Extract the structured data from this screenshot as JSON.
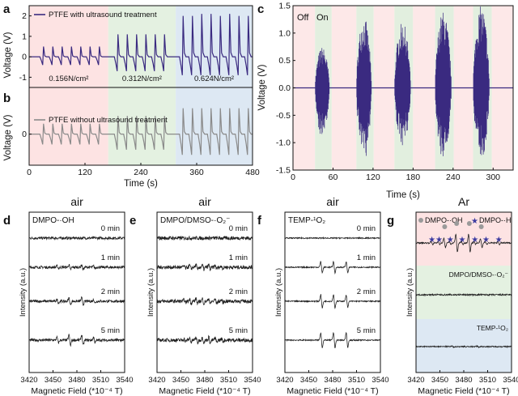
{
  "chart_data": [
    {
      "panel": "a",
      "type": "line",
      "ylabel": "Voltage (V)",
      "ylim": [
        -1.5,
        2.5
      ],
      "yticks": [
        "-1",
        "0",
        "1",
        "2"
      ],
      "legend": "PTFE with ultrasound treatment",
      "series_color": "#3a2a80",
      "regions": [
        {
          "x": [
            0,
            170
          ],
          "color": "#fde3e3",
          "label": "0.156N/cm²"
        },
        {
          "x": [
            170,
            315
          ],
          "color": "#e4f1e1",
          "label": "0.312N/cm²"
        },
        {
          "x": [
            315,
            480
          ],
          "color": "#dde8f3",
          "label": "0.624N/cm²"
        }
      ],
      "pulse_times": [
        30,
        50,
        70,
        90,
        110,
        130,
        150,
        190,
        210,
        230,
        250,
        270,
        290,
        330,
        350,
        370,
        390,
        410,
        430,
        450,
        470
      ],
      "pulse_peaks": [
        0.5,
        0.5,
        0.5,
        0.5,
        0.5,
        0.5,
        0.5,
        1.1,
        1.1,
        1.1,
        1.1,
        1.1,
        1.1,
        2.0,
        2.0,
        2.1,
        2.1,
        2.0,
        2.1,
        2.0,
        2.0
      ],
      "pulse_troughs": [
        -0.4,
        -0.4,
        -0.4,
        -0.4,
        -0.4,
        -0.4,
        -0.4,
        -0.7,
        -0.7,
        -0.7,
        -0.7,
        -0.7,
        -0.7,
        -0.9,
        -0.9,
        -0.9,
        -0.9,
        -0.9,
        -0.9,
        -0.9,
        -0.9
      ]
    },
    {
      "panel": "b",
      "type": "line",
      "ylabel": "Voltage (V)",
      "xlabel": "Time (s)",
      "xlim": [
        0,
        480
      ],
      "xticks": [
        "0",
        "120",
        "240",
        "360",
        "480"
      ],
      "ylim": [
        -0.6,
        0.9
      ],
      "yticks": [
        "0"
      ],
      "legend": "PTFE without ultrasound treatment",
      "series_color": "#8a8a8a",
      "pulse_times": [
        30,
        50,
        70,
        90,
        110,
        130,
        150,
        190,
        210,
        230,
        250,
        270,
        290,
        330,
        350,
        370,
        390,
        410,
        430,
        450,
        470
      ],
      "pulse_peaks": [
        0.2,
        0.2,
        0.2,
        0.2,
        0.2,
        0.2,
        0.2,
        0.35,
        0.35,
        0.35,
        0.35,
        0.35,
        0.35,
        0.5,
        0.5,
        0.5,
        0.5,
        0.5,
        0.5,
        0.5,
        0.5
      ],
      "pulse_troughs": [
        -0.2,
        -0.2,
        -0.2,
        -0.2,
        -0.2,
        -0.2,
        -0.2,
        -0.3,
        -0.3,
        -0.3,
        -0.3,
        -0.3,
        -0.3,
        -0.4,
        -0.4,
        -0.4,
        -0.4,
        -0.4,
        -0.4,
        -0.4,
        -0.4
      ]
    },
    {
      "panel": "c",
      "type": "line",
      "xlabel": "Time (s)",
      "ylabel": "Voltage (V)",
      "xlim": [
        0,
        330
      ],
      "ylim": [
        -1.5,
        1.5
      ],
      "xticks": [
        "0",
        "60",
        "120",
        "180",
        "240",
        "300"
      ],
      "yticks": [
        "-1.5",
        "-1.0",
        "-0.5",
        "0.0",
        "0.5",
        "1.0",
        "1.5"
      ],
      "off_label": "Off",
      "on_label": "On",
      "series_color": "#3a2a80",
      "on_intervals": [
        [
          33,
          58
        ],
        [
          95,
          121
        ],
        [
          152,
          180
        ],
        [
          213,
          241
        ],
        [
          270,
          298
        ]
      ],
      "burst_amplitudes": [
        [
          0.75,
          -0.95
        ],
        [
          1.3,
          -1.35
        ],
        [
          1.2,
          -1.15
        ],
        [
          1.4,
          -1.4
        ],
        [
          1.5,
          -1.45
        ]
      ]
    },
    {
      "panel": "d",
      "type": "line",
      "title": "air",
      "label": "DMPO-·OH",
      "xlabel": "Magnetic Field (*10⁻⁴ T)",
      "ylabel": "Intensity (a.u.)",
      "xlim": [
        3420,
        3540
      ],
      "xticks": [
        "3420",
        "3450",
        "3480",
        "3510",
        "3540"
      ],
      "trace_labels": [
        "0 min",
        "1 min",
        "2 min",
        "5 min"
      ],
      "line_positions": [
        3456,
        3471,
        3487,
        3502
      ],
      "line_amplitudes": [
        [
          0,
          0,
          0,
          0
        ],
        [
          0.25,
          0.5,
          0.5,
          0.25
        ],
        [
          0.35,
          0.7,
          0.7,
          0.35
        ],
        [
          0.55,
          1.1,
          1.1,
          0.55
        ]
      ]
    },
    {
      "panel": "e",
      "type": "line",
      "title": "air",
      "label": "DMPO/DMSO-·O₂⁻",
      "xlabel": "Magnetic Field (*10⁻⁴ T)",
      "ylabel": "Intensity (a.u.)",
      "xlim": [
        3420,
        3540
      ],
      "xticks": [
        "3420",
        "3450",
        "3480",
        "3510",
        "3540"
      ],
      "trace_labels": [
        "0 min",
        "1 min",
        "2 min",
        "5 min"
      ],
      "line_positions": [
        3455,
        3462,
        3470,
        3478,
        3486,
        3494,
        3502
      ],
      "line_amplitudes": [
        [
          0,
          0,
          0,
          0,
          0,
          0,
          0
        ],
        [
          0.3,
          0.4,
          0.6,
          0.5,
          0.6,
          0.4,
          0.3
        ],
        [
          0.35,
          0.5,
          0.7,
          0.6,
          0.7,
          0.5,
          0.35
        ],
        [
          0.35,
          0.5,
          0.7,
          0.6,
          0.7,
          0.5,
          0.35
        ]
      ]
    },
    {
      "panel": "f",
      "type": "line",
      "title": "air",
      "label": "TEMP-¹O₂",
      "xlabel": "Magnetic Field (*10⁻⁴ T)",
      "ylabel": "Intensity (a.u.)",
      "xlim": [
        3420,
        3540
      ],
      "xticks": [
        "3420",
        "3450",
        "3480",
        "3510",
        "3540"
      ],
      "trace_labels": [
        "0 min",
        "1 min",
        "2 min",
        "5 min"
      ],
      "line_positions": [
        3466,
        3482,
        3498
      ],
      "line_amplitudes": [
        [
          0,
          0,
          0
        ],
        [
          1.0,
          1.0,
          0.95
        ],
        [
          1.2,
          1.2,
          1.1
        ],
        [
          1.35,
          1.35,
          1.25
        ]
      ]
    },
    {
      "panel": "g",
      "type": "line",
      "title": "Ar",
      "legend": [
        "DMPO-·OH",
        "DMPO-·H"
      ],
      "xlabel": "Magnetic Field (*10⁻⁴ T)",
      "ylabel": "Intensity (a.u.)",
      "xlim": [
        3420,
        3540
      ],
      "xticks": [
        "3420",
        "3450",
        "3480",
        "3510",
        "3540"
      ],
      "band_labels": [
        "",
        "DMPO/DMSO-·O₂⁻",
        "TEMP-¹O₂"
      ],
      "band_colors": [
        "#fde3e3",
        "#e4f1e1",
        "#dde8f3"
      ],
      "circle_positions": [
        3456,
        3471,
        3487,
        3502
      ],
      "star_positions": [
        3440,
        3449,
        3463,
        3478,
        3494,
        3508,
        3524
      ]
    }
  ]
}
